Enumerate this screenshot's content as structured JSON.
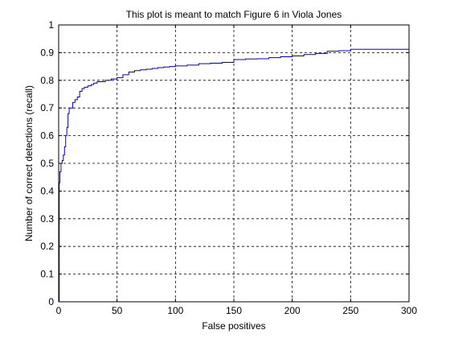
{
  "chart_data": {
    "type": "line",
    "title": "This plot is meant to match Figure 6 in Viola Jones",
    "xlabel": "False positives",
    "ylabel": "Number of correct detections (recall)",
    "xlim": [
      0,
      300
    ],
    "ylim": [
      0,
      1
    ],
    "grid": true,
    "grid_style": "dashed",
    "step": true,
    "x_ticks": [
      0,
      50,
      100,
      150,
      200,
      250,
      300
    ],
    "y_ticks": [
      0,
      0.1,
      0.2,
      0.3,
      0.4,
      0.5,
      0.6,
      0.7,
      0.8,
      0.9,
      1
    ],
    "x_tick_labels": [
      "0",
      "50",
      "100",
      "150",
      "200",
      "250",
      "300"
    ],
    "y_tick_labels": [
      "0",
      "0.1",
      "0.2",
      "0.3",
      "0.4",
      "0.5",
      "0.6",
      "0.7",
      "0.8",
      "0.9",
      "1"
    ],
    "series": [
      {
        "color": "#0000cc",
        "x": [
          0,
          0.5,
          1,
          2,
          3,
          4,
          5,
          6,
          7,
          8,
          9,
          10,
          11,
          12,
          14,
          16,
          18,
          20,
          22,
          25,
          28,
          30,
          33,
          36,
          40,
          45,
          50,
          55,
          60,
          65,
          70,
          75,
          80,
          85,
          90,
          95,
          100,
          110,
          120,
          130,
          140,
          150,
          160,
          170,
          180,
          190,
          200,
          210,
          220,
          230,
          240,
          250,
          260,
          270,
          280,
          290,
          300
        ],
        "y": [
          0.0,
          0.43,
          0.47,
          0.5,
          0.51,
          0.53,
          0.56,
          0.6,
          0.63,
          0.68,
          0.7,
          0.7,
          0.7,
          0.72,
          0.73,
          0.74,
          0.76,
          0.77,
          0.775,
          0.78,
          0.785,
          0.79,
          0.795,
          0.795,
          0.8,
          0.805,
          0.81,
          0.82,
          0.83,
          0.835,
          0.838,
          0.84,
          0.843,
          0.846,
          0.848,
          0.85,
          0.852,
          0.855,
          0.86,
          0.862,
          0.865,
          0.875,
          0.877,
          0.878,
          0.882,
          0.885,
          0.888,
          0.893,
          0.897,
          0.905,
          0.907,
          0.912,
          0.912,
          0.912,
          0.912,
          0.912,
          0.912
        ]
      }
    ]
  }
}
